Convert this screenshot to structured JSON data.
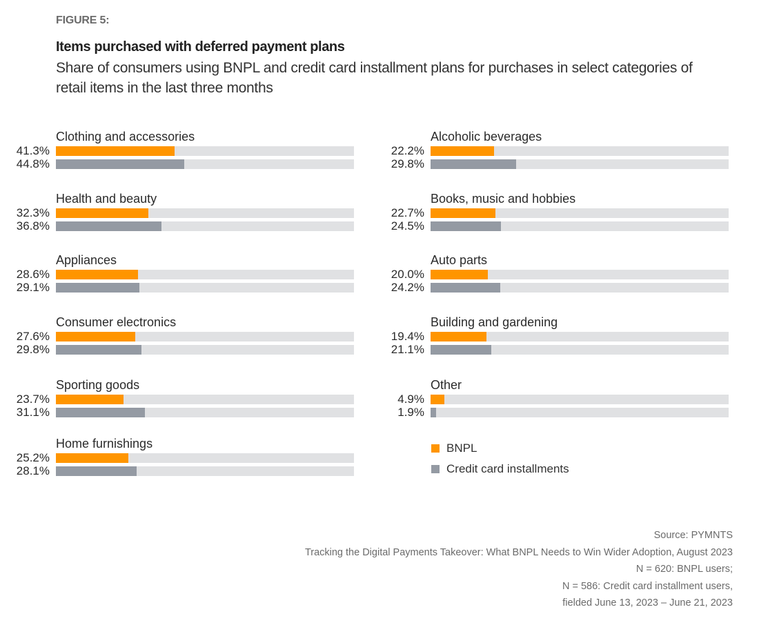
{
  "figure_label": "FIGURE 5:",
  "colors": {
    "bnpl": "#ff9500",
    "credit": "#949aa3",
    "track": "#e0e1e3"
  },
  "chart_data": {
    "type": "bar",
    "orientation": "horizontal",
    "title": "Items purchased with deferred payment plans",
    "subtitle": "Share of consumers using BNPL and credit card installment plans for purchases in select categories of retail items in the last three months",
    "xlabel": "",
    "ylabel": "",
    "unit": "%",
    "grid": false,
    "legend_position": "bottom-right",
    "categories": [
      "Clothing and accessories",
      "Health and beauty",
      "Appliances",
      "Consumer electronics",
      "Sporting goods",
      "Home furnishings",
      "Alcoholic beverages",
      "Books, music and hobbies",
      "Auto parts",
      "Building and gardening",
      "Other"
    ],
    "series": [
      {
        "name": "BNPL",
        "values": [
          41.3,
          32.3,
          28.6,
          27.6,
          23.7,
          25.2,
          22.2,
          22.7,
          20.0,
          19.4,
          4.9
        ],
        "labels": [
          "41.3%",
          "32.3%",
          "28.6%",
          "27.6%",
          "23.7%",
          "25.2%",
          "22.2%",
          "22.7%",
          "20.0%",
          "19.4%",
          "4.9%"
        ]
      },
      {
        "name": "Credit card installments",
        "values": [
          44.8,
          36.8,
          29.1,
          29.8,
          31.1,
          28.1,
          29.8,
          24.5,
          24.2,
          21.1,
          1.9
        ],
        "labels": [
          "44.8%",
          "36.8%",
          "29.1%",
          "29.8%",
          "31.1%",
          "28.1%",
          "29.8%",
          "24.5%",
          "24.2%",
          "21.1%",
          "1.9%"
        ]
      }
    ]
  },
  "legend": [
    {
      "label": "BNPL"
    },
    {
      "label": "Credit card installments"
    }
  ],
  "source": [
    "Source: PYMNTS",
    "Tracking the Digital Payments Takeover: What BNPL Needs to Win Wider Adoption, August 2023",
    "N = 620: BNPL users;",
    "N = 586: Credit card installment users,",
    "fielded June 13, 2023 – June 21, 2023"
  ]
}
